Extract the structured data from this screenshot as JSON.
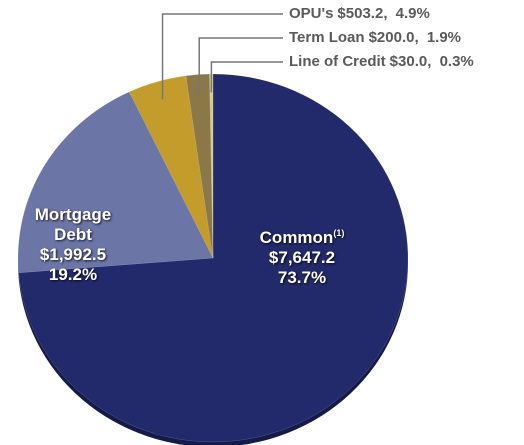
{
  "chart_data": {
    "type": "pie",
    "categories": [
      "Common",
      "Mortgage Debt",
      "OPU's",
      "Term Loan",
      "Line of Credit"
    ],
    "category_superscripts": [
      "(1)",
      null,
      null,
      null,
      null
    ],
    "values": [
      7647.2,
      1992.5,
      503.2,
      200.0,
      30.0
    ],
    "value_labels": [
      "$7,647.2",
      "$1,992.5",
      "$503.2",
      "$200.0",
      "$30.0"
    ],
    "percents": [
      73.7,
      19.2,
      4.9,
      1.9,
      0.3
    ],
    "percent_labels": [
      "73.7%",
      "19.2%",
      "4.9%",
      "1.9%",
      "0.3%"
    ],
    "separator": ", ",
    "colors": [
      "#232a6b",
      "#6b75a6",
      "#c49c2c",
      "#8a7846",
      "#d8c98e"
    ]
  }
}
